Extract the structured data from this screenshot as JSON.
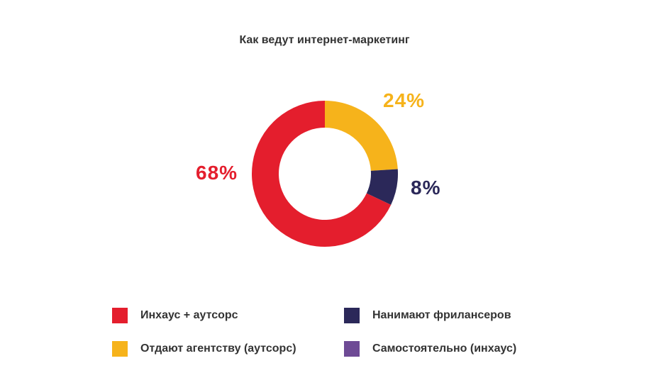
{
  "chart_data": {
    "type": "pie",
    "title": "Как ведут интернет-маркетинг",
    "series": [
      {
        "name": "Инхаус + аутсорс",
        "value": 68,
        "label": "68%",
        "color": "#e41e2d"
      },
      {
        "name": "Отдают агентству (аутсорс)",
        "value": 24,
        "label": "24%",
        "color": "#f6b31b"
      },
      {
        "name": "Нанимают фрилансеров",
        "value": 8,
        "label": "8%",
        "color": "#2b2859"
      },
      {
        "name": "Самостоятельно (инхаус)",
        "value": 0,
        "label": "",
        "color": "#6e4a95"
      }
    ],
    "donut": true,
    "legend_position": "bottom"
  }
}
